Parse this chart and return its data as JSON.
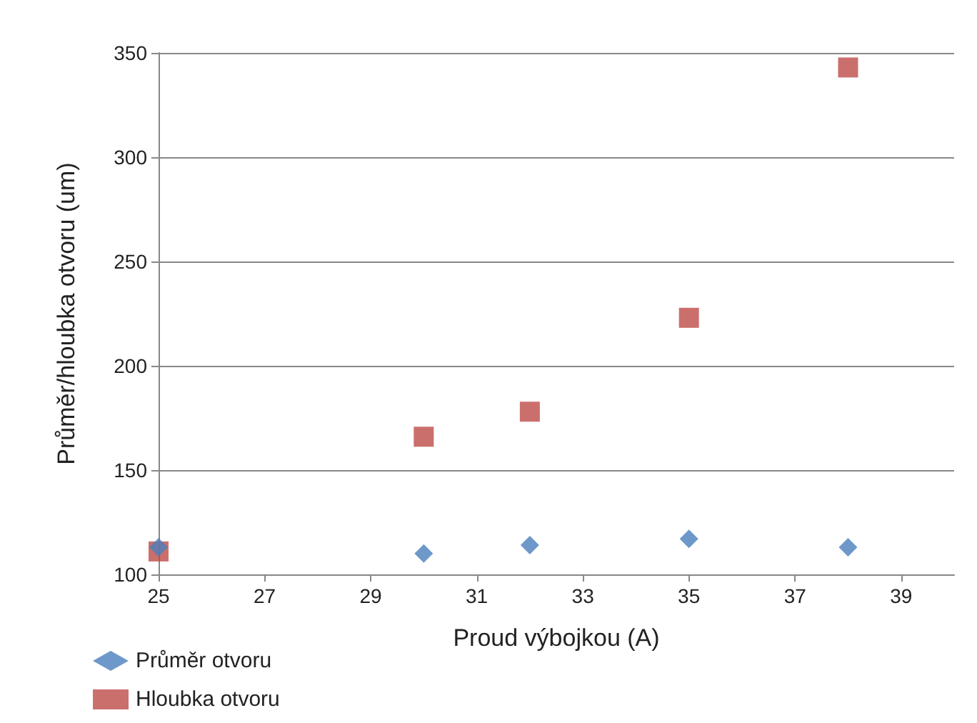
{
  "chart_data": {
    "type": "scatter",
    "xlabel": "Proud výbojkou (A)",
    "ylabel": "Průměr/hloubka otvoru (um)",
    "x": [
      25,
      30,
      32,
      35,
      38
    ],
    "series": [
      {
        "name": "Průměr otvoru",
        "color": "#4a7ebb",
        "marker": "diamond",
        "values": [
          113,
          110,
          114,
          117,
          113
        ]
      },
      {
        "name": "Hloubka otvoru",
        "color": "#be4b48",
        "marker": "square",
        "values": [
          111,
          166,
          178,
          223,
          343
        ]
      }
    ],
    "xlim": [
      25,
      40
    ],
    "xticks": [
      25,
      27,
      29,
      31,
      33,
      35,
      37,
      39
    ],
    "ylim": [
      100,
      350
    ],
    "yticks": [
      100,
      150,
      200,
      250,
      300,
      350
    ],
    "grid": "y",
    "legend": "bottom left"
  }
}
